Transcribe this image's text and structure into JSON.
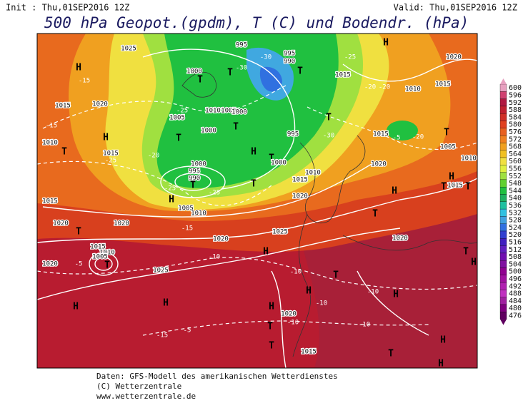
{
  "header": {
    "init": "Init : Thu,01SEP2016 12Z",
    "valid": "Valid: Thu,01SEP2016 12Z",
    "title": "500 hPa Geopot.(gpdm), T (C) und Bodendr. (hPa)"
  },
  "colorbar": {
    "ticks": [
      "600",
      "596",
      "592",
      "588",
      "584",
      "580",
      "576",
      "572",
      "568",
      "564",
      "560",
      "556",
      "552",
      "548",
      "544",
      "540",
      "536",
      "532",
      "528",
      "524",
      "520",
      "516",
      "512",
      "508",
      "504",
      "500",
      "496",
      "492",
      "488",
      "484",
      "480",
      "476"
    ],
    "colors": [
      "#e8a0c0",
      "#d04070",
      "#b01840",
      "#c02030",
      "#d03028",
      "#e04020",
      "#e86020",
      "#f08020",
      "#f0a020",
      "#f0c020",
      "#f0e040",
      "#e0f040",
      "#a0e040",
      "#60d030",
      "#20c040",
      "#20b060",
      "#20c0a0",
      "#30c0e0",
      "#40a0e0",
      "#3070e0",
      "#3040d0",
      "#4020c0",
      "#6020c0",
      "#7010b0",
      "#8010a0",
      "#900090",
      "#a010a0",
      "#b020b0",
      "#c030c0",
      "#a020a0",
      "#800080",
      "#600060"
    ]
  },
  "map_labels": [
    "1025",
    "H",
    "-15",
    "1020",
    "1015",
    "-15",
    "1010",
    "H",
    "T",
    "1015",
    "-25",
    "-20",
    "T",
    "-25",
    "1000",
    "T",
    "1005",
    "1010",
    "1005",
    "1000",
    "T",
    "1000",
    "T",
    "-30",
    "995",
    "-30",
    "995",
    "990",
    "T",
    "1015",
    "-20",
    "-20",
    "1010",
    "1015",
    "1020",
    "-25",
    "H",
    "H",
    "T",
    "1000",
    "995",
    "-30",
    "T",
    "1015",
    "-5",
    "-20",
    "T",
    "1005",
    "1020",
    "1010",
    "1015",
    "1020",
    "H",
    "H",
    "1015",
    "T",
    "1010",
    "T",
    "995",
    "990",
    "T",
    "-25",
    "1005",
    "1010",
    "1000",
    "-25",
    "T",
    "H",
    "1015",
    "T",
    "1020",
    "1020",
    "-15",
    "1020",
    "1025",
    "T",
    "1020",
    "T",
    "H",
    "1015",
    "1010",
    "1005",
    "T",
    "-5",
    "1020",
    "-10",
    "H",
    "1025",
    "-10",
    "T",
    "-10",
    "H",
    "H",
    "-10",
    "H",
    "H",
    "H",
    "1020",
    "-10",
    "T",
    "-10",
    "-5",
    "-15",
    "T",
    "1015",
    "T",
    "H",
    "H"
  ],
  "footer": [
    "Daten: GFS-Modell des amerikanischen Wetterdienstes",
    "(C) Wetterzentrale",
    "www.wetterzentrale.de"
  ]
}
